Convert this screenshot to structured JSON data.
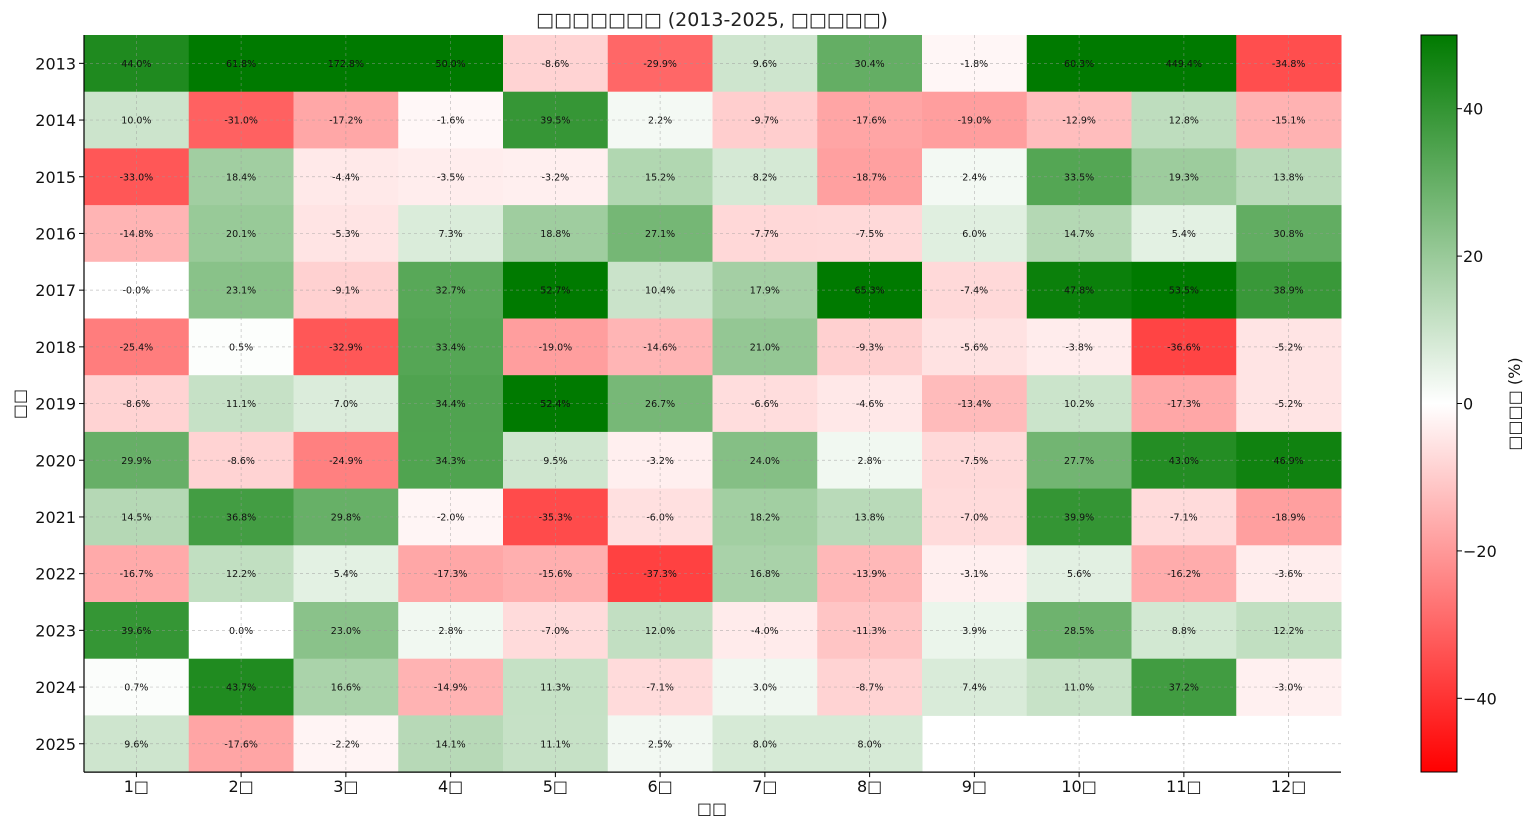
{
  "chart_data": {
    "type": "heatmap",
    "title": "□□□□□□□ (2013-2025, □□□□□)",
    "xlabel": "□□",
    "ylabel": "□□",
    "colorbar_label": "□□□□ (%)",
    "colorbar_ticks": [
      "40",
      "20",
      "0",
      "−20",
      "−40"
    ],
    "colorbar_range": [
      -50,
      50
    ],
    "colormap": [
      "#ff0000",
      "#ffffff",
      "#007a00"
    ],
    "grid": true,
    "x_labels": [
      "1□",
      "2□",
      "3□",
      "4□",
      "5□",
      "6□",
      "7□",
      "8□",
      "9□",
      "10□",
      "11□",
      "12□"
    ],
    "y_labels": [
      "2013",
      "2014",
      "2015",
      "2016",
      "2017",
      "2018",
      "2019",
      "2020",
      "2021",
      "2022",
      "2023",
      "2024",
      "2025"
    ],
    "values": [
      [
        44.0,
        61.8,
        172.8,
        50.0,
        -8.6,
        -29.9,
        9.6,
        30.4,
        -1.8,
        60.3,
        449.4,
        -34.8
      ],
      [
        10.0,
        -31.0,
        -17.2,
        -1.6,
        39.5,
        2.2,
        -9.7,
        -17.6,
        -19.0,
        -12.9,
        12.8,
        -15.1
      ],
      [
        -33.0,
        18.4,
        -4.4,
        -3.5,
        -3.2,
        15.2,
        8.2,
        -18.7,
        2.4,
        33.5,
        19.3,
        13.8
      ],
      [
        -14.8,
        20.1,
        -5.3,
        7.3,
        18.8,
        27.1,
        -7.7,
        -7.5,
        6.0,
        14.7,
        5.4,
        30.8
      ],
      [
        -0.0,
        23.1,
        -9.1,
        32.7,
        52.7,
        10.4,
        17.9,
        65.3,
        -7.4,
        47.8,
        53.5,
        38.9
      ],
      [
        -25.4,
        0.5,
        -32.9,
        33.4,
        -19.0,
        -14.6,
        21.0,
        -9.3,
        -5.6,
        -3.8,
        -36.6,
        -5.2
      ],
      [
        -8.6,
        11.1,
        7.0,
        34.4,
        52.4,
        26.7,
        -6.6,
        -4.6,
        -13.4,
        10.2,
        -17.3,
        -5.2
      ],
      [
        29.9,
        -8.6,
        -24.9,
        34.3,
        9.5,
        -3.2,
        24.0,
        2.8,
        -7.5,
        27.7,
        43.0,
        46.9
      ],
      [
        14.5,
        36.8,
        29.8,
        -2.0,
        -35.3,
        -6.0,
        18.2,
        13.8,
        -7.0,
        39.9,
        -7.1,
        -18.9
      ],
      [
        -16.7,
        12.2,
        5.4,
        -17.3,
        -15.6,
        -37.3,
        16.8,
        -13.9,
        -3.1,
        5.6,
        -16.2,
        -3.6
      ],
      [
        39.6,
        0.0,
        23.0,
        2.8,
        -7.0,
        12.0,
        -4.0,
        -11.3,
        3.9,
        28.5,
        8.8,
        12.2
      ],
      [
        0.7,
        43.7,
        16.6,
        -14.9,
        11.3,
        -7.1,
        3.0,
        -8.7,
        7.4,
        11.0,
        37.2,
        -3.0
      ],
      [
        9.6,
        -17.6,
        -2.2,
        14.1,
        11.1,
        2.5,
        8.0,
        8.0,
        null,
        null,
        null,
        null
      ]
    ],
    "cell_labels": [
      [
        "44.0%",
        "61.8%",
        "172.8%",
        "50.0%",
        "-8.6%",
        "-29.9%",
        "9.6%",
        "30.4%",
        "-1.8%",
        "60.3%",
        "449.4%",
        "-34.8%"
      ],
      [
        "10.0%",
        "-31.0%",
        "-17.2%",
        "-1.6%",
        "39.5%",
        "2.2%",
        "-9.7%",
        "-17.6%",
        "-19.0%",
        "-12.9%",
        "12.8%",
        "-15.1%"
      ],
      [
        "-33.0%",
        "18.4%",
        "-4.4%",
        "-3.5%",
        "-3.2%",
        "15.2%",
        "8.2%",
        "-18.7%",
        "2.4%",
        "33.5%",
        "19.3%",
        "13.8%"
      ],
      [
        "-14.8%",
        "20.1%",
        "-5.3%",
        "7.3%",
        "18.8%",
        "27.1%",
        "-7.7%",
        "-7.5%",
        "6.0%",
        "14.7%",
        "5.4%",
        "30.8%"
      ],
      [
        "-0.0%",
        "23.1%",
        "-9.1%",
        "32.7%",
        "52.7%",
        "10.4%",
        "17.9%",
        "65.3%",
        "-7.4%",
        "47.8%",
        "53.5%",
        "38.9%"
      ],
      [
        "-25.4%",
        "0.5%",
        "-32.9%",
        "33.4%",
        "-19.0%",
        "-14.6%",
        "21.0%",
        "-9.3%",
        "-5.6%",
        "-3.8%",
        "-36.6%",
        "-5.2%"
      ],
      [
        "-8.6%",
        "11.1%",
        "7.0%",
        "34.4%",
        "52.4%",
        "26.7%",
        "-6.6%",
        "-4.6%",
        "-13.4%",
        "10.2%",
        "-17.3%",
        "-5.2%"
      ],
      [
        "29.9%",
        "-8.6%",
        "-24.9%",
        "34.3%",
        "9.5%",
        "-3.2%",
        "24.0%",
        "2.8%",
        "-7.5%",
        "27.7%",
        "43.0%",
        "46.9%"
      ],
      [
        "14.5%",
        "36.8%",
        "29.8%",
        "-2.0%",
        "-35.3%",
        "-6.0%",
        "18.2%",
        "13.8%",
        "-7.0%",
        "39.9%",
        "-7.1%",
        "-18.9%"
      ],
      [
        "-16.7%",
        "12.2%",
        "5.4%",
        "-17.3%",
        "-15.6%",
        "-37.3%",
        "16.8%",
        "-13.9%",
        "-3.1%",
        "5.6%",
        "-16.2%",
        "-3.6%"
      ],
      [
        "39.6%",
        "0.0%",
        "23.0%",
        "2.8%",
        "-7.0%",
        "12.0%",
        "-4.0%",
        "-11.3%",
        "3.9%",
        "28.5%",
        "8.8%",
        "12.2%"
      ],
      [
        "0.7%",
        "43.7%",
        "16.6%",
        "-14.9%",
        "11.3%",
        "-7.1%",
        "3.0%",
        "-8.7%",
        "7.4%",
        "11.0%",
        "37.2%",
        "-3.0%"
      ],
      [
        "9.6%",
        "-17.6%",
        "-2.2%",
        "14.1%",
        "11.1%",
        "2.5%",
        "8.0%",
        "8.0%",
        "",
        "",
        "",
        ""
      ]
    ]
  }
}
